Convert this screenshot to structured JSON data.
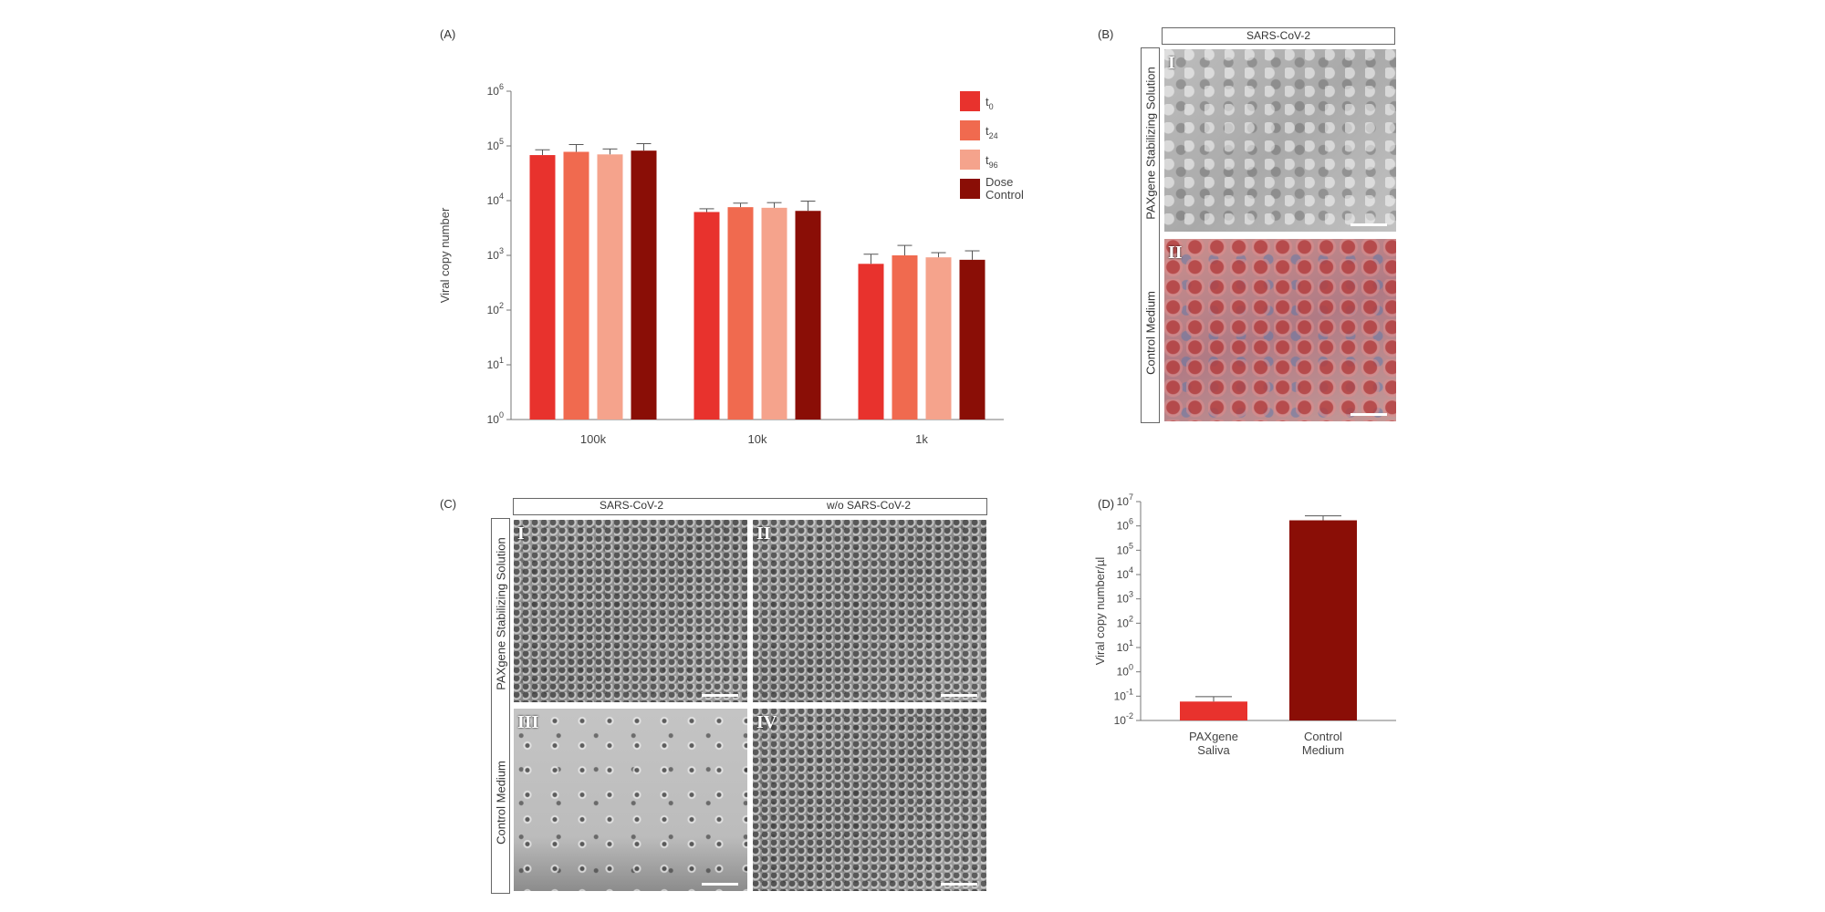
{
  "panels": {
    "a": "(A)",
    "b": "(B)",
    "c": "(C)",
    "d": "(D)"
  },
  "chart_data": [
    {
      "panel": "(A)",
      "type": "bar",
      "categories": [
        "100k",
        "10k",
        "1k"
      ],
      "series": [
        {
          "name": "t0",
          "sub": "0",
          "color": "#e8322d",
          "values": [
            68000,
            6200,
            700
          ],
          "err": [
            17000,
            900,
            350
          ]
        },
        {
          "name": "t24",
          "sub": "24",
          "color": "#f06a4f",
          "values": [
            78000,
            7600,
            1000
          ],
          "err": [
            28000,
            1400,
            520
          ]
        },
        {
          "name": "t96",
          "sub": "96",
          "color": "#f5a38c",
          "values": [
            70000,
            7400,
            920
          ],
          "err": [
            18000,
            1800,
            200
          ]
        },
        {
          "name": "Dose Control",
          "color": "#8a0e06",
          "values": [
            82000,
            6500,
            830
          ],
          "err": [
            28000,
            3300,
            380
          ]
        }
      ],
      "ylabel": "Viral copy number",
      "yscale": "log",
      "ylim": [
        1,
        1000000
      ],
      "yticks": [
        {
          "base": "10",
          "exp": "0"
        },
        {
          "base": "10",
          "exp": "1"
        },
        {
          "base": "10",
          "exp": "2"
        },
        {
          "base": "10",
          "exp": "3"
        },
        {
          "base": "10",
          "exp": "4"
        },
        {
          "base": "10",
          "exp": "5"
        },
        {
          "base": "10",
          "exp": "6"
        }
      ],
      "legend": "top-right",
      "legend_labels": {
        "t": "t",
        "dose1": "Dose",
        "dose2": "Control"
      }
    },
    {
      "panel": "(D)",
      "type": "bar",
      "categories": [
        [
          "PAXgene",
          "Saliva"
        ],
        [
          "Control",
          "Medium"
        ]
      ],
      "values": [
        0.06,
        1700000
      ],
      "err": [
        0.035,
        900000
      ],
      "colors": [
        "#e8322d",
        "#8a0e06"
      ],
      "ylabel": "Viral copy number/µl",
      "yscale": "log",
      "ylim": [
        0.01,
        10000000
      ],
      "yticks": [
        {
          "base": "10",
          "exp": "-2"
        },
        {
          "base": "10",
          "exp": "-1"
        },
        {
          "base": "10",
          "exp": "0"
        },
        {
          "base": "10",
          "exp": "1"
        },
        {
          "base": "10",
          "exp": "2"
        },
        {
          "base": "10",
          "exp": "3"
        },
        {
          "base": "10",
          "exp": "4"
        },
        {
          "base": "10",
          "exp": "5"
        },
        {
          "base": "10",
          "exp": "6"
        },
        {
          "base": "10",
          "exp": "7"
        }
      ]
    }
  ],
  "panel_b": {
    "header": "SARS-CoV-2",
    "rows": [
      "PAXgene Stabilizing Solution",
      "Control Medium"
    ],
    "images": [
      "I",
      "II"
    ]
  },
  "panel_c": {
    "headers": [
      "SARS-CoV-2",
      "w/o SARS-CoV-2"
    ],
    "rows": [
      "PAXgene  Stabilizing Solution",
      "Control Medium"
    ],
    "images": [
      "I",
      "II",
      "III",
      "IV"
    ]
  }
}
